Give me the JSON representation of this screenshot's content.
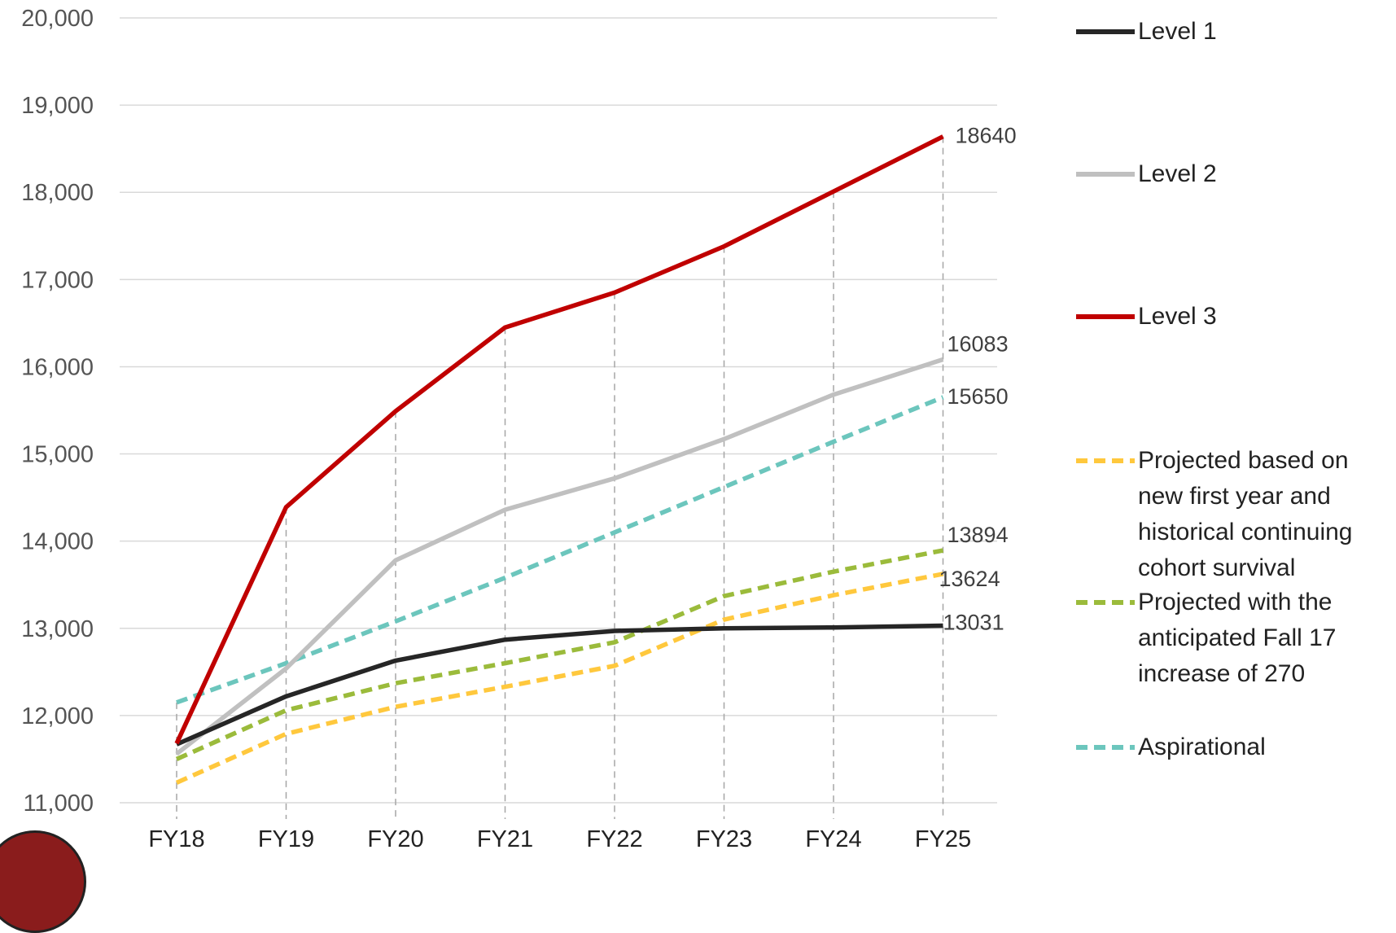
{
  "chart_data": {
    "type": "line",
    "title": "",
    "xlabel": "",
    "ylabel": "",
    "categories": [
      "FY18",
      "FY19",
      "FY20",
      "FY21",
      "FY22",
      "FY23",
      "FY24",
      "FY25"
    ],
    "ylim": [
      11000,
      20000
    ],
    "yticks": [
      11000,
      12000,
      13000,
      14000,
      15000,
      16000,
      17000,
      18000,
      19000,
      20000
    ],
    "ytick_labels": [
      "11,000",
      "12,000",
      "13,000",
      "14,000",
      "15,000",
      "16,000",
      "17,000",
      "18,000",
      "19,000",
      "20,000"
    ],
    "grid": true,
    "legend_position": "right",
    "series": [
      {
        "name": "Level 1",
        "color": "#262626",
        "dash": "solid",
        "values": [
          11670,
          12220,
          12630,
          12870,
          12970,
          13000,
          13010,
          13031
        ],
        "end_label": "13031"
      },
      {
        "name": "Level 2",
        "color": "#c0c0c0",
        "dash": "solid",
        "values": [
          11560,
          12540,
          13780,
          14360,
          14720,
          15170,
          15680,
          16083
        ],
        "end_label": "16083"
      },
      {
        "name": "Level 3",
        "color": "#c00000",
        "dash": "solid",
        "values": [
          11680,
          14390,
          15490,
          16450,
          16850,
          17380,
          18010,
          18640
        ],
        "end_label": "18640"
      },
      {
        "name": "Projected based on new first year and historical continuing cohort survival",
        "color": "#ffc83d",
        "dash": "dashed",
        "values": [
          11230,
          11790,
          12100,
          12330,
          12570,
          13100,
          13380,
          13624
        ],
        "end_label": "13624"
      },
      {
        "name": "Projected with the anticipated Fall 17 increase of 270",
        "color": "#9bbb3b",
        "dash": "dashed",
        "values": [
          11500,
          12060,
          12370,
          12600,
          12840,
          13370,
          13650,
          13894
        ],
        "end_label": "13894"
      },
      {
        "name": "Aspirational",
        "color": "#6cc6bd",
        "dash": "dashed",
        "values": [
          12150,
          12600,
          13080,
          13580,
          14100,
          14620,
          15140,
          15650
        ],
        "end_label": "15650"
      }
    ]
  },
  "legend": {
    "items": [
      {
        "label": "Level 1",
        "color": "#262626",
        "dash": "solid"
      },
      {
        "label": "Level 2",
        "color": "#c0c0c0",
        "dash": "solid"
      },
      {
        "label": "Level 3",
        "color": "#c00000",
        "dash": "solid"
      },
      {
        "label": "Projected based on new first year and historical continuing cohort survival",
        "color": "#ffc83d",
        "dash": "dashed"
      },
      {
        "label": "Projected with the anticipated Fall 17 increase of 270",
        "color": "#9bbb3b",
        "dash": "dashed"
      },
      {
        "label": "Aspirational",
        "color": "#6cc6bd",
        "dash": "dashed"
      }
    ]
  }
}
